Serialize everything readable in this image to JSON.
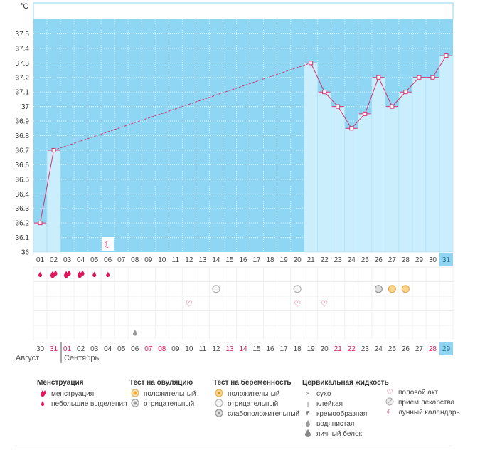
{
  "chart_data": {
    "type": "line",
    "title": "",
    "unit_label": "°C",
    "ylim": [
      36,
      37.6
    ],
    "y_ticks": [
      "36",
      "36.1",
      "36.2",
      "36.3",
      "36.4",
      "36.5",
      "36.6",
      "36.7",
      "36.8",
      "36.9",
      "37",
      "37.1",
      "37.2",
      "37.3",
      "37.4",
      "37.5"
    ],
    "cycle_days": [
      "01",
      "02",
      "03",
      "04",
      "05",
      "06",
      "07",
      "08",
      "09",
      "10",
      "11",
      "12",
      "13",
      "14",
      "15",
      "16",
      "17",
      "18",
      "19",
      "20",
      "21",
      "22",
      "23",
      "24",
      "25",
      "26",
      "27",
      "28",
      "29",
      "30",
      "31"
    ],
    "dates": [
      "30",
      "31",
      "01",
      "02",
      "03",
      "04",
      "05",
      "06",
      "07",
      "08",
      "09",
      "10",
      "11",
      "12",
      "13",
      "14",
      "15",
      "16",
      "17",
      "18",
      "19",
      "20",
      "21",
      "22",
      "23",
      "24",
      "25",
      "26",
      "27",
      "28",
      "29"
    ],
    "date_highlight": [
      false,
      true,
      true,
      false,
      false,
      false,
      false,
      false,
      true,
      true,
      false,
      false,
      false,
      false,
      true,
      true,
      false,
      false,
      false,
      false,
      false,
      false,
      true,
      true,
      false,
      false,
      false,
      false,
      false,
      true,
      false
    ],
    "temperatures": [
      36.2,
      36.7,
      null,
      null,
      null,
      null,
      null,
      null,
      null,
      null,
      null,
      null,
      null,
      null,
      null,
      null,
      null,
      null,
      null,
      null,
      37.3,
      37.1,
      37.0,
      36.85,
      36.95,
      37.2,
      37.0,
      37.1,
      37.2,
      37.2,
      37.35
    ],
    "current_day_index": 30,
    "months": {
      "first": "Август",
      "second": "Сентябрь"
    },
    "markers": {
      "moon_day_index": 5,
      "menstruation_days": [
        2,
        3,
        4
      ],
      "light_discharge_days": [
        1,
        5,
        6
      ],
      "pregnancy_negative_days": [
        14,
        20
      ],
      "pregnancy_weak_days": [
        26
      ],
      "pregnancy_positive_days": [
        27,
        28
      ],
      "intercourse_days": [
        12,
        20,
        22
      ],
      "fluid_watery_days": [
        8
      ]
    }
  },
  "legend": {
    "menstruation": {
      "title": "Менструация",
      "items": [
        "менструация",
        "небольшие выделения"
      ]
    },
    "ovulation": {
      "title": "Тест на овуляцию",
      "items": [
        "положительный",
        "отрицательный"
      ]
    },
    "pregnancy": {
      "title": "Тест на беременность",
      "items": [
        "положительный",
        "отрицательный",
        "слабоположительный"
      ]
    },
    "fluid": {
      "title": "Цервикальная жидкость",
      "items": [
        "сухо",
        "клейкая",
        "кремообразная",
        "водянистая",
        "яичный белок"
      ]
    },
    "other": {
      "items": [
        "половой акт",
        "прием лекарства",
        "лунный календарь"
      ]
    }
  },
  "colors": {
    "bg": "#8ed6f4",
    "bar": "#cbeefc",
    "line": "#d4336c",
    "accent": "#e1155a",
    "current": "#8fd5f1"
  }
}
